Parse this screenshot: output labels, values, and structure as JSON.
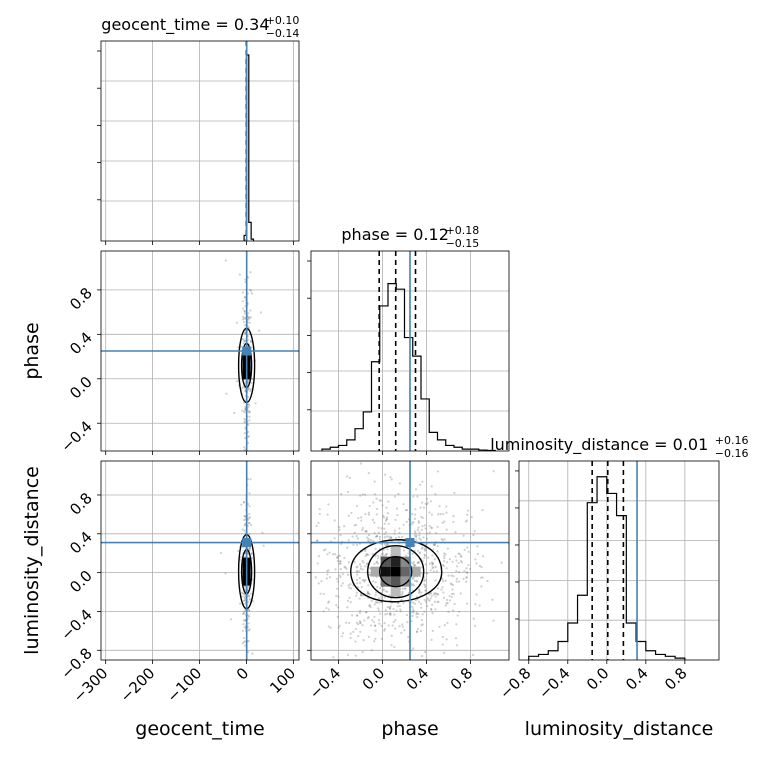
{
  "chart_data": {
    "type": "corner",
    "parameters": [
      "geocent_time",
      "phase",
      "luminosity_distance"
    ],
    "truth_color": "#4682b4",
    "diagonal": [
      {
        "param": "geocent_time",
        "title": {
          "base": "geocent_time = 0.34",
          "sup": "+0.10",
          "sub": "−0.14"
        },
        "range": [
          -310,
          112
        ],
        "median": 0.34,
        "lo": 0.2,
        "hi": 0.44,
        "truth": 0.5,
        "bins": [
          -5,
          0,
          5,
          10,
          15
        ],
        "counts": [
          0.03,
          1.0,
          0.1,
          0.01
        ]
      },
      {
        "param": "phase",
        "title": {
          "base": "phase = 0.12",
          "sup": "+0.18",
          "sub": "−0.15"
        },
        "range": [
          -0.65,
          1.15
        ],
        "median": 0.12,
        "lo": -0.03,
        "hi": 0.3,
        "truth": 0.25,
        "bins": [
          -0.55,
          -0.475,
          -0.4,
          -0.325,
          -0.25,
          -0.175,
          -0.1,
          -0.025,
          0.05,
          0.125,
          0.2,
          0.275,
          0.35,
          0.425,
          0.5,
          0.575,
          0.65,
          0.725,
          0.8,
          0.875,
          0.95,
          1.025
        ],
        "counts": [
          0.01,
          0.02,
          0.03,
          0.06,
          0.12,
          0.21,
          0.48,
          0.78,
          0.9,
          0.87,
          0.61,
          0.51,
          0.28,
          0.1,
          0.06,
          0.03,
          0.02,
          0.01,
          0.01,
          0.005,
          0.003
        ]
      },
      {
        "param": "luminosity_distance",
        "title": {
          "base": "luminosity_distance = 0.01",
          "sup": "+0.16",
          "sub": "−0.16"
        },
        "range": [
          -0.9,
          1.15
        ],
        "median": 0.01,
        "lo": -0.15,
        "hi": 0.17,
        "truth": 0.31,
        "bins": [
          -0.8,
          -0.7,
          -0.6,
          -0.5,
          -0.4,
          -0.3,
          -0.2,
          -0.1,
          0.0,
          0.1,
          0.2,
          0.3,
          0.4,
          0.5,
          0.6,
          0.7,
          0.8
        ],
        "counts": [
          0.02,
          0.03,
          0.05,
          0.1,
          0.2,
          0.35,
          0.85,
          0.99,
          0.9,
          0.78,
          0.2,
          0.1,
          0.05,
          0.03,
          0.02,
          0.01
        ]
      }
    ],
    "offdiag": [
      {
        "x": "geocent_time",
        "y": "phase",
        "truth": [
          0.5,
          0.25
        ]
      },
      {
        "x": "geocent_time",
        "y": "luminosity_distance",
        "truth": [
          0.5,
          0.31
        ]
      },
      {
        "x": "phase",
        "y": "luminosity_distance",
        "truth": [
          0.25,
          0.31
        ]
      }
    ],
    "axes": {
      "geocent_time": {
        "label": "geocent_time",
        "ticks": [
          -300,
          -200,
          -100,
          0,
          100
        ],
        "tick_labels": [
          "−300",
          "−200",
          "−100",
          "0",
          "100"
        ]
      },
      "phase": {
        "label": "phase",
        "ticks": [
          -0.4,
          0.0,
          0.4,
          0.8
        ],
        "tick_labels": [
          "−0.4",
          "0.0",
          "0.4",
          "0.8"
        ]
      },
      "luminosity_distance": {
        "label": "luminosity_distance",
        "ticks": [
          -0.8,
          -0.4,
          0.0,
          0.4,
          0.8
        ],
        "tick_labels": [
          "−0.8",
          "−0.4",
          "0.0",
          "0.4",
          "0.8"
        ]
      }
    }
  }
}
